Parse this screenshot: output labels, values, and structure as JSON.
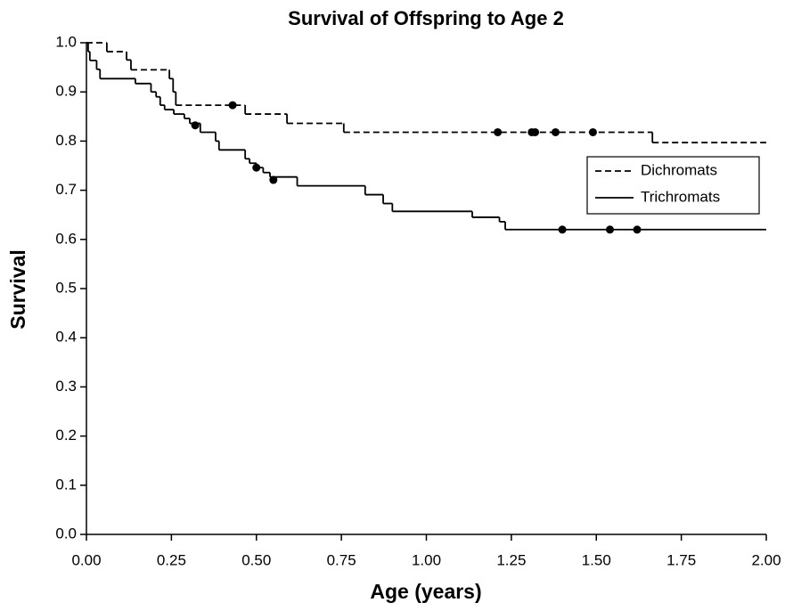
{
  "chart_data": {
    "type": "step",
    "title": "Survival of Offspring to Age 2",
    "x_label": "Age (years)",
    "y_label": "Survival",
    "xlim": [
      0,
      2
    ],
    "ylim": [
      0,
      1
    ],
    "xticks": [
      {
        "value": 0,
        "label": "0.00"
      },
      0.25,
      {
        "value": 0.5,
        "label": "0.50"
      },
      0.75,
      {
        "value": 1,
        "label": "1.00"
      },
      1.25,
      {
        "value": 1.5,
        "label": "1.50"
      },
      1.75,
      {
        "value": 2,
        "label": "2.00"
      }
    ],
    "yticks": [
      {
        "value": 0,
        "label": "0.0"
      },
      0.1,
      0.2,
      0.3,
      0.4,
      0.5,
      0.6,
      0.7,
      0.8,
      0.9,
      {
        "value": 1,
        "label": "1.0"
      }
    ],
    "legend_position": "upper right",
    "series": [
      {
        "name": "Dichromats",
        "color": "#000000",
        "dash": "dashed",
        "x": [
          0,
          0.06,
          0.118,
          0.131,
          0.244,
          0.255,
          0.263,
          0.467,
          0.59,
          0.757,
          1.665
        ],
        "values": [
          1.0,
          0.982,
          0.965,
          0.945,
          0.927,
          0.9,
          0.873,
          0.855,
          0.836,
          0.818,
          0.797
        ],
        "censored": {
          "x": [
            0.43,
            1.21,
            1.31,
            1.32,
            1.38,
            1.49
          ],
          "values": [
            0.873,
            0.818,
            0.818,
            0.818,
            0.818,
            0.818
          ]
        }
      },
      {
        "name": "Trichromats",
        "color": "#000000",
        "dash": "solid",
        "x": [
          0,
          0.005,
          0.01,
          0.03,
          0.04,
          0.144,
          0.19,
          0.205,
          0.217,
          0.23,
          0.257,
          0.288,
          0.304,
          0.335,
          0.38,
          0.39,
          0.467,
          0.48,
          0.5,
          0.52,
          0.54,
          0.62,
          0.82,
          0.873,
          0.9,
          1.135,
          1.215,
          1.232
        ],
        "values": [
          1.0,
          0.982,
          0.964,
          0.946,
          0.927,
          0.917,
          0.9,
          0.89,
          0.873,
          0.864,
          0.855,
          0.846,
          0.836,
          0.818,
          0.8,
          0.782,
          0.764,
          0.755,
          0.746,
          0.736,
          0.727,
          0.709,
          0.691,
          0.673,
          0.657,
          0.645,
          0.636,
          0.62
        ],
        "censored": {
          "x": [
            0.32,
            0.5,
            0.55,
            1.4,
            1.54,
            1.62
          ],
          "values": [
            0.832,
            0.746,
            0.721,
            0.62,
            0.62,
            0.62
          ]
        }
      }
    ]
  }
}
